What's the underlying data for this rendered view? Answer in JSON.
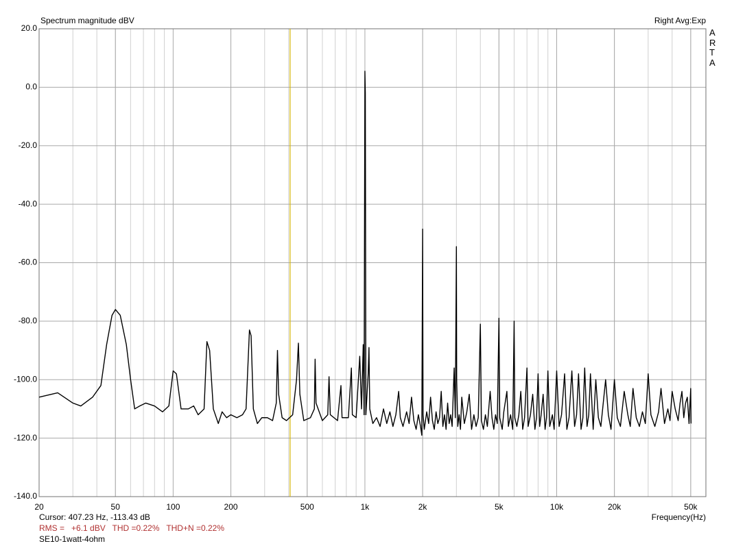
{
  "chart_data": {
    "type": "line",
    "title": "Spectrum magnitude dBV",
    "averaging": "Right Avg:Exp",
    "logo": "ARTA",
    "x_label": "Frequency(Hz)",
    "cursor": {
      "label": "Cursor: 407.23 Hz, -113.43 dB",
      "x": 407.23,
      "color": "#d4b400"
    },
    "measurement": "RMS =   +6.1 dBV   THD =0.22%   THD+N =0.22%",
    "file_label": "SE10-1watt-4ohm",
    "x_scale": "log",
    "grid": true,
    "minor_grid": true,
    "color": "#000000",
    "xlim": [
      20,
      60000
    ],
    "ylim": [
      -140,
      20
    ],
    "xticks": [
      20,
      50,
      100,
      200,
      500,
      {
        "value": 1000,
        "label": "1k"
      },
      {
        "value": 2000,
        "label": "2k"
      },
      {
        "value": 5000,
        "label": "5k"
      },
      {
        "value": 10000,
        "label": "10k"
      },
      {
        "value": 20000,
        "label": "20k"
      },
      {
        "value": 50000,
        "label": "50k"
      }
    ],
    "yticks": [
      {
        "value": -140,
        "label": "-140.0"
      },
      {
        "value": -120,
        "label": "-120.0"
      },
      {
        "value": -100,
        "label": "-100.0"
      },
      {
        "value": -80,
        "label": "-80.0"
      },
      {
        "value": -60,
        "label": "-60.0"
      },
      {
        "value": -40,
        "label": "-40.0"
      },
      {
        "value": -20,
        "label": "-20.0"
      },
      {
        "value": 0,
        "label": "0.0"
      },
      {
        "value": 20,
        "label": "20.0"
      }
    ],
    "x": [
      20,
      25,
      30,
      33,
      38,
      42,
      45,
      48,
      50,
      53,
      57,
      60,
      63,
      67,
      72,
      80,
      88,
      95,
      100,
      104,
      110,
      120,
      128,
      135,
      145,
      150,
      155,
      162,
      172,
      180,
      190,
      200,
      215,
      230,
      240,
      250,
      255,
      262,
      275,
      290,
      310,
      330,
      345,
      350,
      355,
      370,
      390,
      420,
      440,
      450,
      458,
      480,
      520,
      545,
      550,
      556,
      600,
      640,
      650,
      660,
      720,
      750,
      760,
      820,
      850,
      860,
      900,
      940,
      960,
      980,
      990,
      1000,
      1005,
      1012,
      1040,
      1050,
      1060,
      1100,
      1150,
      1200,
      1250,
      1300,
      1350,
      1400,
      1450,
      1500,
      1530,
      1580,
      1650,
      1700,
      1750,
      1800,
      1850,
      1900,
      1950,
      1980,
      2000,
      2010,
      2040,
      2100,
      2150,
      2200,
      2250,
      2300,
      2350,
      2400,
      2450,
      2500,
      2550,
      2600,
      2650,
      2700,
      2750,
      2800,
      2850,
      2920,
      2960,
      3000,
      3010,
      3050,
      3100,
      3150,
      3200,
      3300,
      3400,
      3500,
      3600,
      3700,
      3800,
      3900,
      4000,
      4050,
      4150,
      4250,
      4350,
      4500,
      4600,
      4700,
      4800,
      4900,
      5000,
      5050,
      5200,
      5300,
      5500,
      5600,
      5750,
      5900,
      6000,
      6050,
      6200,
      6350,
      6500,
      6650,
      6800,
      7000,
      7100,
      7300,
      7500,
      7700,
      7850,
      8000,
      8150,
      8300,
      8500,
      8700,
      8850,
      9000,
      9200,
      9500,
      9700,
      10000,
      10300,
      10600,
      11000,
      11300,
      11600,
      12000,
      12400,
      12700,
      13000,
      13400,
      13700,
      14000,
      14400,
      14700,
      15000,
      15500,
      16000,
      16500,
      17000,
      18000,
      18600,
      19200,
      20000,
      20700,
      21500,
      22500,
      23500,
      24200,
      25000,
      26000,
      27000,
      28000,
      29000,
      30000,
      31000,
      32500,
      34000,
      35000,
      36500,
      38000,
      39000,
      40000,
      41500,
      43000,
      44000,
      45000,
      46000,
      47000,
      48000,
      49000,
      50000,
      50200
    ],
    "values": [
      -106,
      -104.5,
      -108,
      -109,
      -106,
      -102,
      -88,
      -78,
      -76,
      -78,
      -88,
      -100,
      -110,
      -109,
      -108,
      -109,
      -111,
      -109,
      -97,
      -98,
      -110,
      -110,
      -109,
      -112,
      -110,
      -87,
      -90,
      -110,
      -115,
      -111,
      -113,
      -112,
      -113,
      -112,
      -110,
      -83,
      -85,
      -110,
      -115,
      -113,
      -113,
      -114,
      -108,
      -90,
      -105,
      -113,
      -114,
      -112,
      -100,
      -87.5,
      -105,
      -114,
      -113,
      -110,
      -93,
      -108,
      -114,
      -112,
      -99,
      -112,
      -114,
      -102,
      -113,
      -113,
      -96,
      -112,
      -113,
      -92,
      -110,
      -88,
      -112,
      5.5,
      -2,
      -112,
      -98,
      -89,
      -110,
      -115,
      -113,
      -116,
      -110,
      -115,
      -111,
      -116,
      -112,
      -104,
      -113,
      -116,
      -111,
      -115,
      -106,
      -114,
      -117,
      -112,
      -116,
      -119,
      -48.5,
      -112,
      -117,
      -111,
      -115,
      -106,
      -114,
      -117,
      -111,
      -115,
      -113,
      -104,
      -116,
      -112,
      -117,
      -108,
      -115,
      -112,
      -116,
      -96,
      -113,
      -54.5,
      -100,
      -116,
      -112,
      -117,
      -106,
      -115,
      -111,
      -105,
      -117,
      -112,
      -116,
      -113,
      -81,
      -114,
      -117,
      -112,
      -116,
      -104,
      -113,
      -117,
      -112,
      -115,
      -79,
      -113,
      -117,
      -111,
      -104,
      -116,
      -112,
      -117,
      -80,
      -113,
      -116,
      -112,
      -104,
      -117,
      -113,
      -96,
      -116,
      -112,
      -105,
      -117,
      -113,
      -98,
      -116,
      -112,
      -105,
      -117,
      -113,
      -97,
      -116,
      -112,
      -117,
      -97,
      -116,
      -112,
      -98,
      -117,
      -113,
      -97,
      -116,
      -112,
      -98,
      -117,
      -113,
      -96,
      -116,
      -112,
      -98,
      -117,
      -100,
      -113,
      -116,
      -100,
      -112,
      -117,
      -100,
      -113,
      -116,
      -104,
      -112,
      -116,
      -103,
      -113,
      -116,
      -111,
      -115,
      -98,
      -112,
      -116,
      -111,
      -103,
      -115,
      -110,
      -114,
      -104,
      -110,
      -114,
      -108,
      -104,
      -113,
      -108,
      -106,
      -115,
      -103,
      -115
    ]
  }
}
